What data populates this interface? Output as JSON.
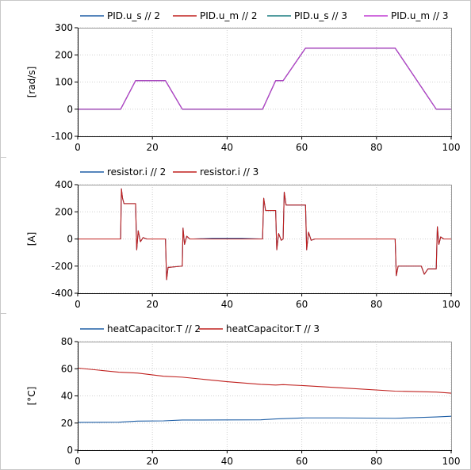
{
  "colors": {
    "blue": "#1f5fa6",
    "red": "#c0211f",
    "teal": "#1a7d80",
    "magenta": "#c03bd4",
    "grid": "#d0d0d0",
    "axis": "#000000"
  },
  "chart_data": [
    {
      "type": "line",
      "ylabel": "[rad/s]",
      "xlim": [
        0,
        100
      ],
      "ylim": [
        -100,
        300
      ],
      "x_ticks": [
        0,
        20,
        40,
        60,
        80,
        100
      ],
      "x_tick_labels": [
        "0",
        "20",
        "40",
        "60",
        "80",
        "100"
      ],
      "y_ticks": [
        -100,
        0,
        100,
        200,
        300
      ],
      "y_tick_labels": [
        "-100",
        "0",
        "100",
        "200",
        "300"
      ],
      "grid": true,
      "legend_position": "top",
      "series": [
        {
          "name": "PID.u_s // 2",
          "color": "#1f5fa6",
          "x": [
            0,
            11.5,
            15.5,
            23.5,
            28,
            49.5,
            53,
            55,
            61,
            85,
            96,
            100
          ],
          "y": [
            0,
            0,
            105,
            105,
            0,
            0,
            105,
            105,
            225,
            225,
            0,
            0
          ]
        },
        {
          "name": "PID.u_m // 2",
          "color": "#c0211f",
          "x": [
            0,
            11.5,
            15.5,
            23.5,
            28,
            49.5,
            53,
            55,
            61,
            85,
            96,
            100
          ],
          "y": [
            0,
            0,
            105,
            105,
            0,
            0,
            105,
            105,
            225,
            225,
            0,
            0
          ]
        },
        {
          "name": "PID.u_s // 3",
          "color": "#1a7d80",
          "x": [
            0,
            11.5,
            15.5,
            23.5,
            28,
            49.5,
            53,
            55,
            61,
            85,
            96,
            100
          ],
          "y": [
            0,
            0,
            105,
            105,
            0,
            0,
            105,
            105,
            225,
            225,
            0,
            0
          ]
        },
        {
          "name": "PID.u_m // 3",
          "color": "#c03bd4",
          "x": [
            0,
            11.5,
            15.5,
            23.5,
            28,
            49.5,
            53,
            55,
            61,
            85,
            96,
            100
          ],
          "y": [
            0,
            0,
            105,
            105,
            0,
            0,
            105,
            105,
            225,
            225,
            0,
            0
          ]
        }
      ]
    },
    {
      "type": "line",
      "ylabel": "[A]",
      "xlim": [
        0,
        100
      ],
      "ylim": [
        -400,
        400
      ],
      "x_ticks": [
        0,
        20,
        40,
        60,
        80,
        100
      ],
      "x_tick_labels": [
        "0",
        "20",
        "40",
        "60",
        "80",
        "100"
      ],
      "y_ticks": [
        -400,
        -200,
        0,
        200,
        400
      ],
      "y_tick_labels": [
        "-400",
        "-200",
        "0",
        "200",
        "400"
      ],
      "grid": true,
      "legend_position": "top",
      "series": [
        {
          "name": "resistor.i // 2",
          "color": "#1f5fa6",
          "x": [
            0,
            11.5,
            11.7,
            12.0,
            12.4,
            15.5,
            15.8,
            16.2,
            16.8,
            17.5,
            18.5,
            20,
            23.5,
            23.8,
            24.2,
            28,
            28.2,
            28.6,
            29.2,
            30,
            31,
            36,
            40,
            44,
            49.5,
            49.8,
            50.3,
            53,
            53.3,
            53.8,
            54.5,
            55,
            55.3,
            55.8,
            56.5,
            61,
            61.3,
            61.8,
            62.5,
            63.5,
            70,
            75,
            80,
            85,
            85.3,
            85.8,
            86.5,
            92,
            92.8,
            93.8,
            96,
            96.3,
            96.7,
            97.2,
            98,
            100
          ],
          "y": [
            0,
            0,
            370,
            300,
            260,
            260,
            -80,
            60,
            -20,
            10,
            0,
            0,
            0,
            -300,
            -210,
            -200,
            80,
            -40,
            20,
            0,
            0,
            5,
            5,
            5,
            0,
            300,
            210,
            210,
            -80,
            40,
            -10,
            0,
            345,
            250,
            250,
            250,
            -80,
            50,
            -10,
            0,
            0,
            0,
            0,
            0,
            -270,
            -200,
            -200,
            -200,
            -260,
            -220,
            -220,
            90,
            -40,
            15,
            0,
            0
          ]
        },
        {
          "name": "resistor.i // 3",
          "color": "#c0211f",
          "x": [
            0,
            11.5,
            11.7,
            12.0,
            12.4,
            15.5,
            15.8,
            16.2,
            16.8,
            17.5,
            18.5,
            20,
            23.5,
            23.8,
            24.2,
            28,
            28.2,
            28.6,
            29.2,
            30,
            31,
            36,
            40,
            44,
            49.5,
            49.8,
            50.3,
            53,
            53.3,
            53.8,
            54.5,
            55,
            55.3,
            55.8,
            56.5,
            61,
            61.3,
            61.8,
            62.5,
            63.5,
            70,
            75,
            80,
            85,
            85.3,
            85.8,
            86.5,
            92,
            92.8,
            93.8,
            96,
            96.3,
            96.7,
            97.2,
            98,
            100
          ],
          "y": [
            0,
            0,
            370,
            300,
            260,
            260,
            -80,
            60,
            -20,
            10,
            0,
            0,
            0,
            -300,
            -210,
            -200,
            80,
            -40,
            20,
            0,
            0,
            0,
            0,
            0,
            0,
            300,
            210,
            210,
            -80,
            40,
            -10,
            0,
            345,
            250,
            250,
            250,
            -80,
            50,
            -10,
            0,
            0,
            0,
            0,
            0,
            -270,
            -200,
            -200,
            -200,
            -260,
            -220,
            -220,
            90,
            -40,
            15,
            0,
            0
          ]
        }
      ]
    },
    {
      "type": "line",
      "ylabel": "[°C]",
      "xlim": [
        0,
        100
      ],
      "ylim": [
        0,
        80
      ],
      "x_ticks": [
        0,
        20,
        40,
        60,
        80,
        100
      ],
      "x_tick_labels": [
        "0",
        "20",
        "40",
        "60",
        "80",
        "100"
      ],
      "y_ticks": [
        0,
        20,
        40,
        60,
        80
      ],
      "y_tick_labels": [
        "0",
        "20",
        "40",
        "60",
        "80"
      ],
      "grid": true,
      "legend_position": "top",
      "series": [
        {
          "name": "heatCapacitor.T // 2",
          "color": "#1f5fa6",
          "x": [
            0,
            11,
            16,
            23,
            28,
            40,
            49,
            53,
            61,
            70,
            85,
            96,
            100
          ],
          "y": [
            20.5,
            20.6,
            21.4,
            21.6,
            22.2,
            22.3,
            22.4,
            23.0,
            23.8,
            23.8,
            23.5,
            24.5,
            25.0
          ]
        },
        {
          "name": "heatCapacitor.T // 3",
          "color": "#c0211f",
          "x": [
            0,
            11,
            16,
            23,
            28,
            40,
            49,
            53,
            55,
            61,
            70,
            85,
            96,
            100
          ],
          "y": [
            60.5,
            57.5,
            56.8,
            54.5,
            53.8,
            50.5,
            48.5,
            48.0,
            48.3,
            47.5,
            46.0,
            43.5,
            42.8,
            42.0
          ]
        }
      ]
    }
  ]
}
